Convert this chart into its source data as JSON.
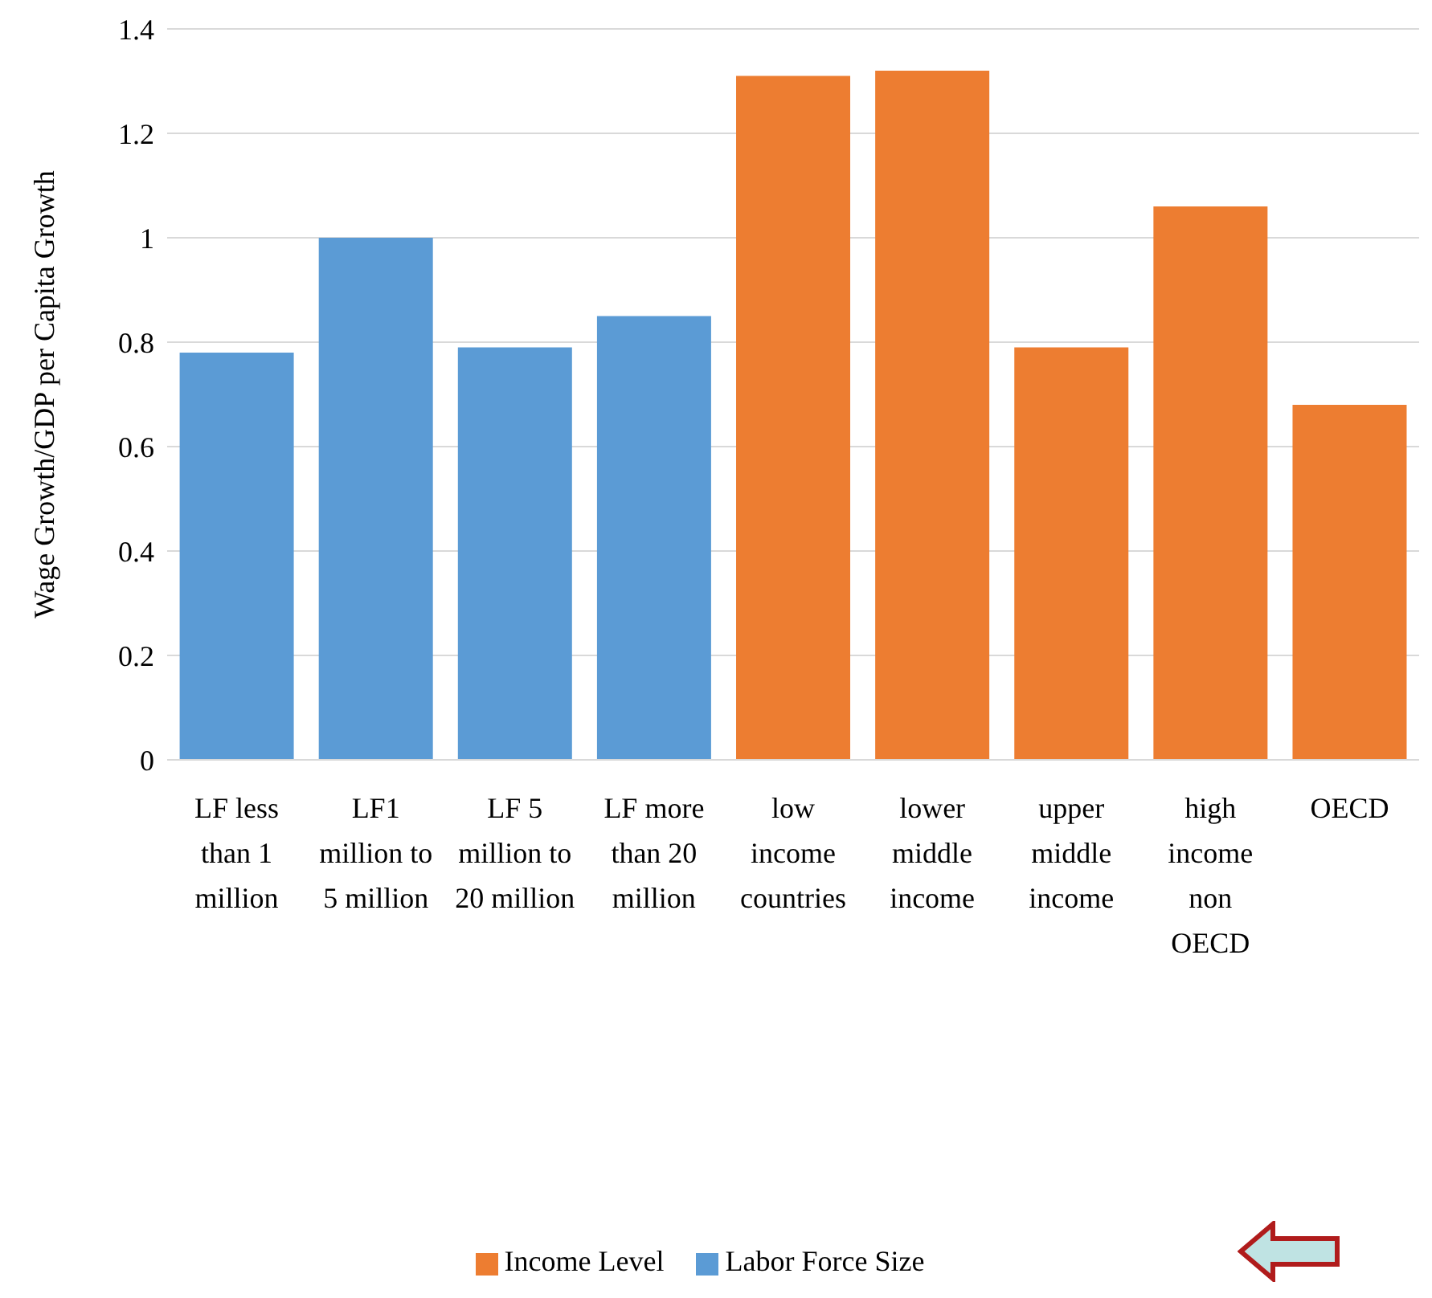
{
  "chart_data": {
    "type": "bar",
    "ylabel": "Wage Growth/GDP per Capita Growth",
    "categories": [
      "LF less than 1 million",
      "LF1 million to 5 million",
      "LF 5 million to 20 million",
      "LF more than 20 million",
      "low income countries",
      "lower middle income",
      "upper middle income",
      "high income non OECD",
      "OECD"
    ],
    "series": [
      {
        "name": "Labor Force Size",
        "color": "#5b9bd5",
        "values": [
          0.78,
          1.0,
          0.79,
          0.85,
          null,
          null,
          null,
          null,
          null
        ]
      },
      {
        "name": "Income Level",
        "color": "#ed7d31",
        "values": [
          null,
          null,
          null,
          null,
          1.31,
          1.32,
          0.79,
          1.06,
          0.68
        ]
      }
    ],
    "stacked": true,
    "ylim": [
      0,
      1.4
    ],
    "yticks": [
      0,
      0.2,
      0.4,
      0.6,
      0.8,
      1,
      1.2,
      1.4
    ],
    "grid": "y",
    "legend": "bottom"
  }
}
